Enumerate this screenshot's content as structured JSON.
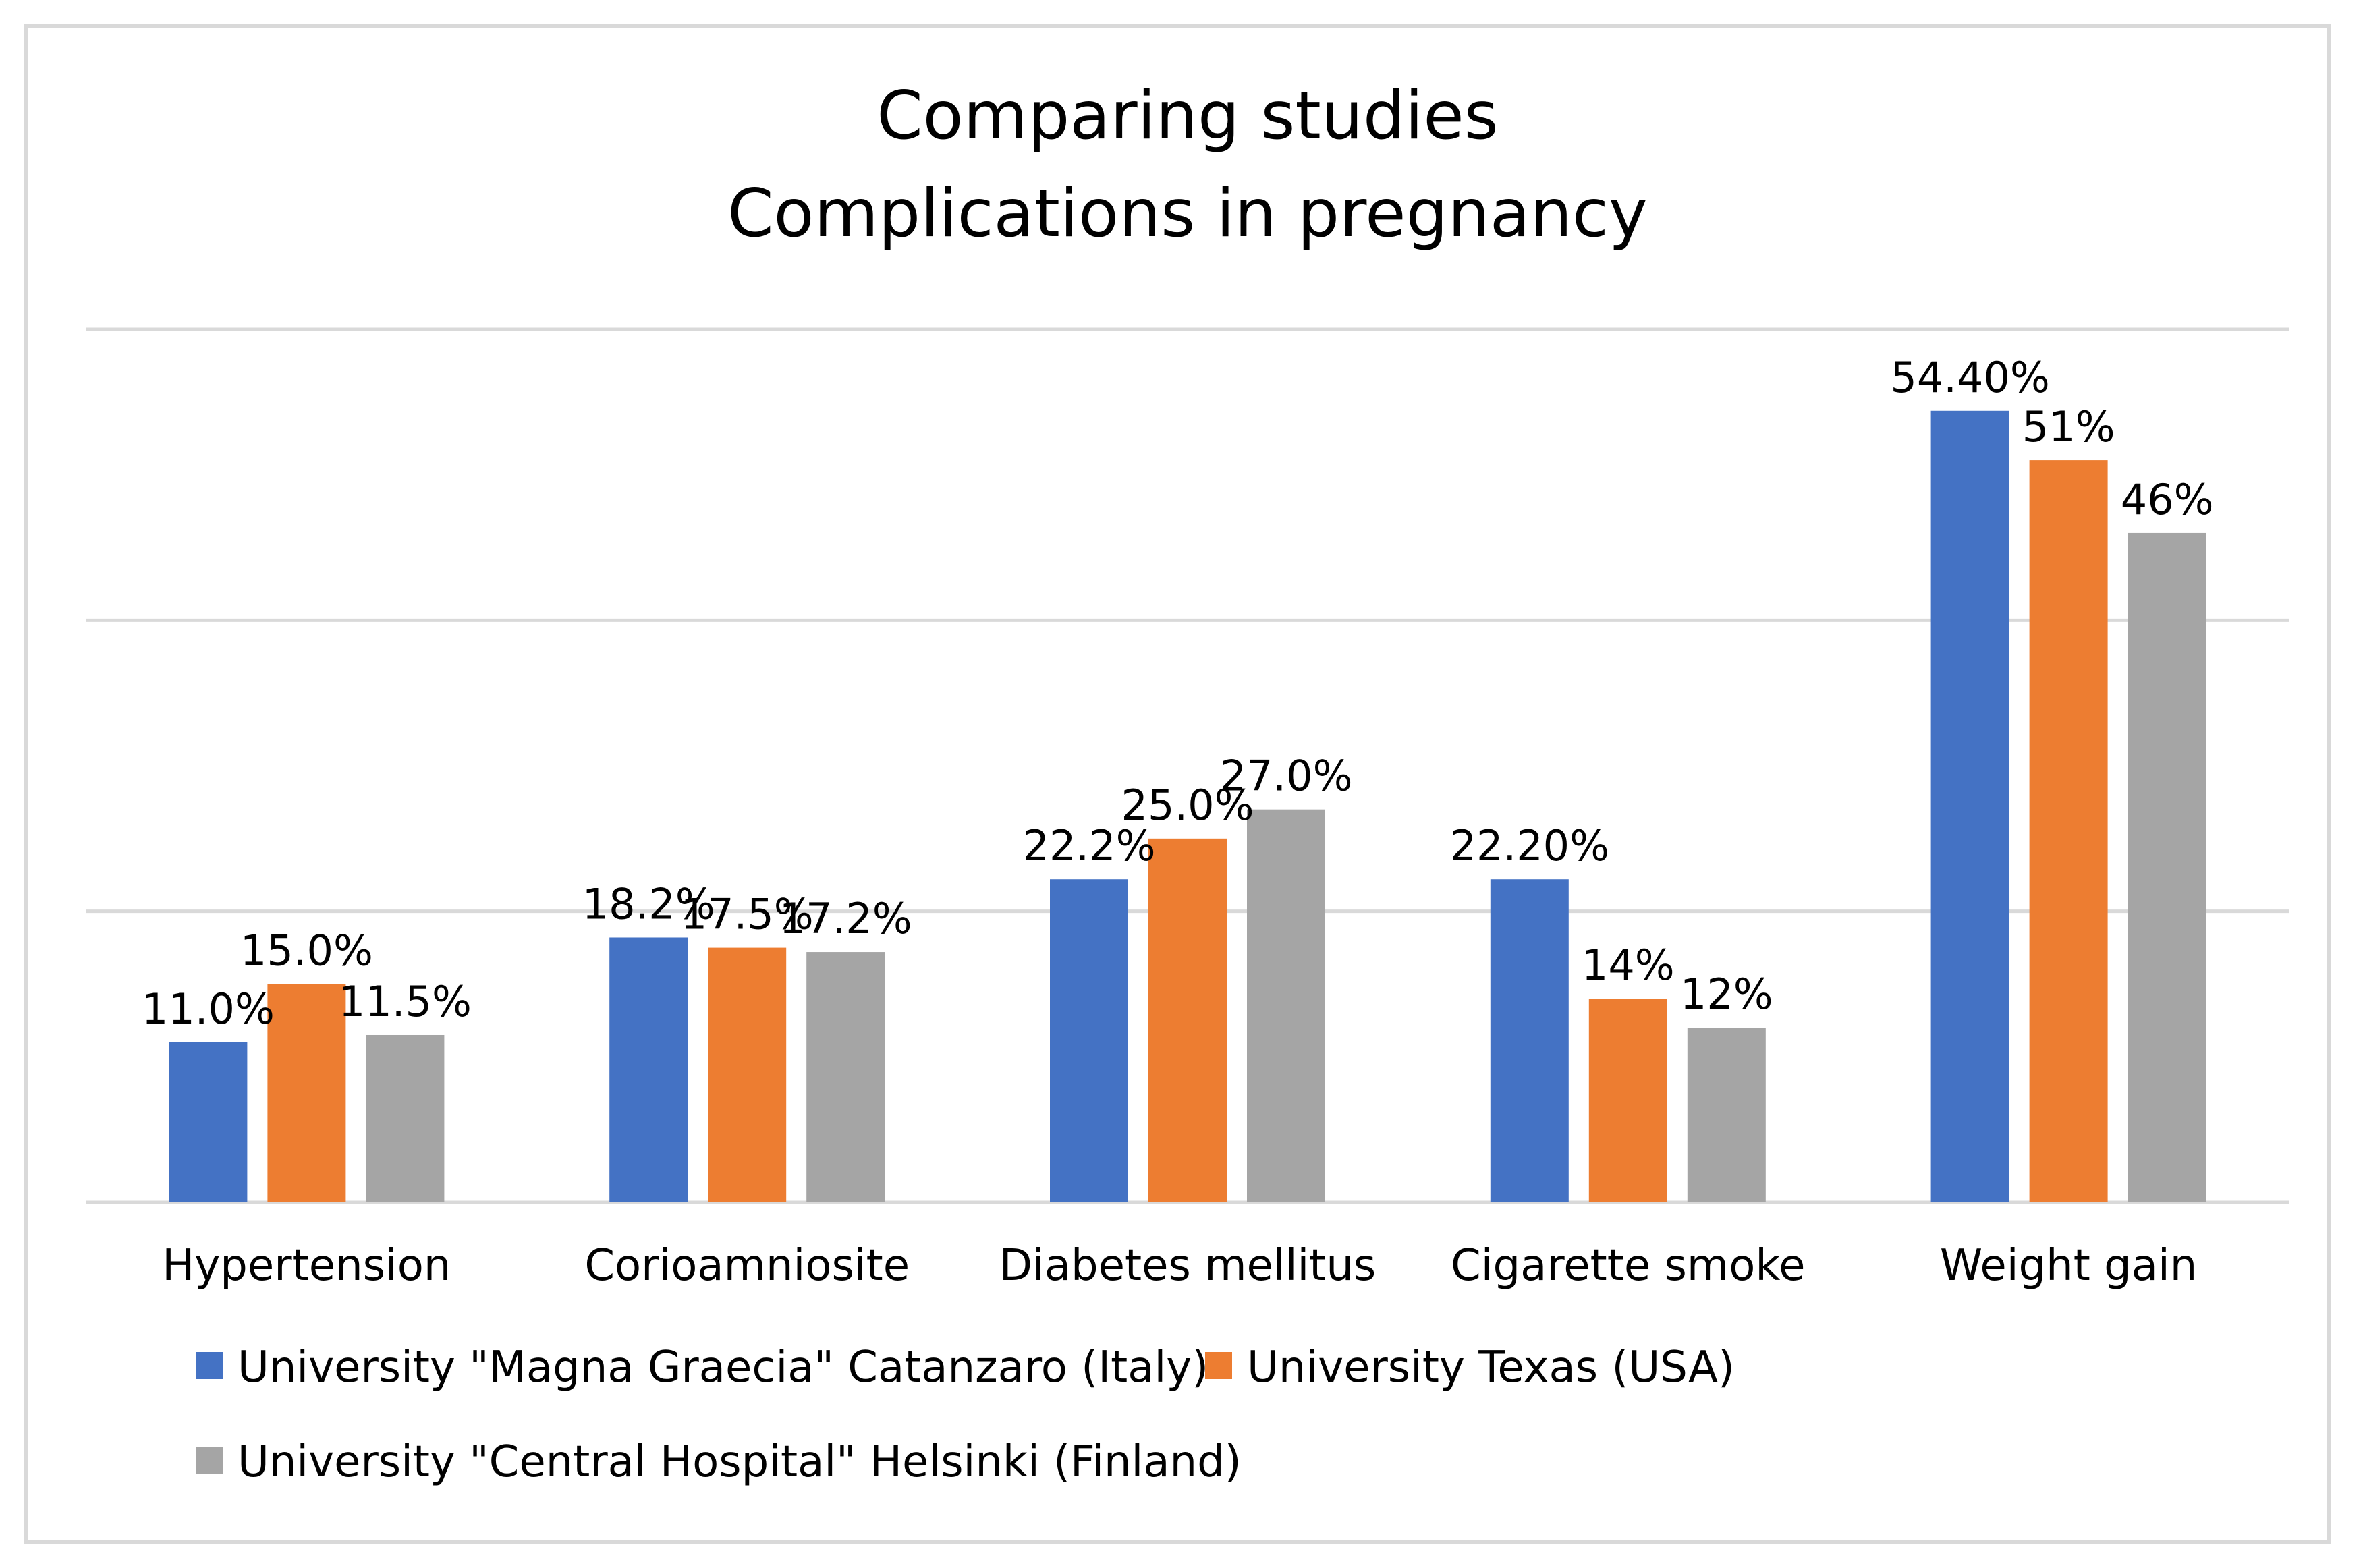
{
  "chart_data": {
    "type": "bar",
    "title_lines": [
      "Comparing studies",
      "Complications in pregnancy"
    ],
    "categories": [
      "Hypertension",
      "Corioamniosite",
      "Diabetes mellitus",
      "Cigarette smoke",
      "Weight gain"
    ],
    "series": [
      {
        "name": "University \"Magna Graecia\" Catanzaro (Italy)",
        "color": "#4472c4",
        "values": [
          11.0,
          18.2,
          22.2,
          22.2,
          54.4
        ],
        "labels": [
          "11.0%",
          "18.2%",
          "22.2%",
          "22.20%",
          "54.40%"
        ]
      },
      {
        "name": "University Texas (USA)",
        "color": "#ed7d31",
        "values": [
          15.0,
          17.5,
          25.0,
          14.0,
          51.0
        ],
        "labels": [
          "15.0%",
          "17.5%",
          "25.0%",
          "14%",
          "51%"
        ]
      },
      {
        "name": "University \"Central Hospital\" Helsinki (Finland)",
        "color": "#a5a5a5",
        "values": [
          11.5,
          17.2,
          27.0,
          12.0,
          46.0
        ],
        "labels": [
          "11.5%",
          "17.2%",
          "27.0%",
          "12%",
          "46%"
        ]
      }
    ],
    "ylim": [
      0,
      60
    ],
    "gridlines": [
      0,
      20,
      40,
      60
    ],
    "grid": true,
    "y_axis_labels_shown": false,
    "legend_position": "bottom"
  }
}
